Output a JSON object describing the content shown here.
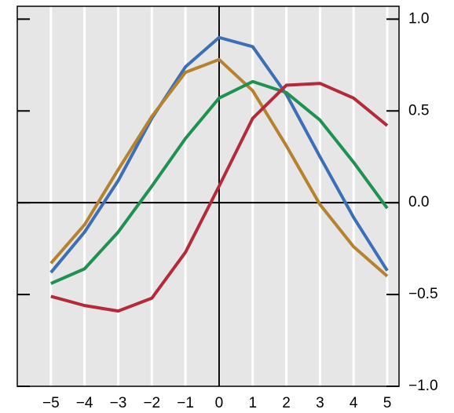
{
  "chart_data": {
    "type": "line",
    "x": [
      -5,
      -4,
      -3,
      -2,
      -1,
      0,
      1,
      2,
      3,
      4,
      5
    ],
    "series": [
      {
        "color": "#3d6fb6",
        "values": [
          -0.38,
          -0.16,
          0.12,
          0.46,
          0.74,
          0.9,
          0.85,
          0.59,
          0.25,
          -0.08,
          -0.37
        ]
      },
      {
        "color": "#b5832f",
        "values": [
          -0.33,
          -0.12,
          0.18,
          0.47,
          0.71,
          0.78,
          0.61,
          0.31,
          -0.01,
          -0.24,
          -0.4
        ]
      },
      {
        "color": "#1f9150",
        "values": [
          -0.44,
          -0.36,
          -0.16,
          0.09,
          0.35,
          0.57,
          0.66,
          0.6,
          0.45,
          0.22,
          -0.03
        ]
      },
      {
        "color": "#b42a3b",
        "values": [
          -0.51,
          -0.56,
          -0.59,
          -0.52,
          -0.27,
          0.09,
          0.46,
          0.64,
          0.65,
          0.57,
          0.42
        ]
      }
    ],
    "xlim": [
      -6,
      5.35
    ],
    "ylim": [
      -1.0,
      1.07
    ],
    "xticks": [
      {
        "value": -5,
        "label": "−5"
      },
      {
        "value": -4,
        "label": "−4"
      },
      {
        "value": -3,
        "label": "−3"
      },
      {
        "value": -2,
        "label": "−2"
      },
      {
        "value": -1,
        "label": "−1"
      },
      0,
      1,
      2,
      3,
      4,
      5
    ],
    "yticks": [
      {
        "value": 1.0,
        "label": "1.0"
      },
      {
        "value": 0.5,
        "label": "0.5"
      },
      {
        "value": 0.0,
        "label": "0.0"
      },
      {
        "value": -0.5,
        "label": "−0.5"
      },
      {
        "value": -1.0,
        "label": "−1.0"
      }
    ],
    "grid": true
  }
}
